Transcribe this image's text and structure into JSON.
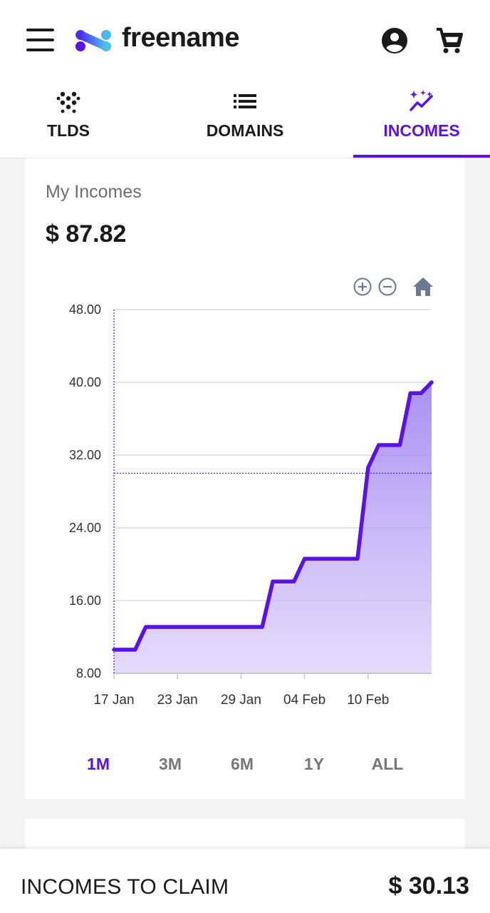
{
  "header": {
    "brand": "freename",
    "menu_icon": "hamburger-menu-icon",
    "account_icon": "account-circle-icon",
    "cart_icon": "shopping-cart-icon"
  },
  "tabs": [
    {
      "label": "TLDS",
      "icon": "dots-grid-icon",
      "active": false
    },
    {
      "label": "DOMAINS",
      "icon": "list-icon",
      "active": false
    },
    {
      "label": "INCOMES",
      "icon": "sparkle-trend-icon",
      "active": true
    }
  ],
  "incomes": {
    "title": "My Incomes",
    "amount": "$ 87.82"
  },
  "chart_toolbar": {
    "zoom_in_icon": "zoom-in-icon",
    "zoom_out_icon": "zoom-out-icon",
    "reset_icon": "home-icon"
  },
  "chart_data": {
    "type": "area",
    "x": [
      "17 Jan",
      "19 Jan",
      "20 Jan",
      "31 Jan",
      "01 Feb",
      "03 Feb",
      "04 Feb",
      "09 Feb",
      "10 Feb",
      "11 Feb",
      "13 Feb",
      "14 Feb",
      "15 Feb",
      "16 Feb"
    ],
    "series": [
      {
        "values": [
          10.6,
          10.6,
          13.1,
          13.1,
          18.1,
          18.1,
          20.6,
          20.6,
          30.6,
          33.1,
          33.1,
          38.8,
          38.8,
          40.0
        ]
      }
    ],
    "x_ticks": [
      "17 Jan",
      "23 Jan",
      "29 Jan",
      "04 Feb",
      "10 Feb"
    ],
    "y_ticks": [
      "8.00",
      "16.00",
      "24.00",
      "32.00",
      "40.00",
      "48.00"
    ],
    "ylim": [
      8,
      48
    ],
    "crosshair": {
      "x": "17 Jan",
      "y": 30.0
    },
    "grid": true,
    "line_color": "#5b12e6",
    "fill_color": "#b9a3f5"
  },
  "ranges": [
    {
      "label": "1M",
      "active": true
    },
    {
      "label": "3M",
      "active": false
    },
    {
      "label": "6M",
      "active": false
    },
    {
      "label": "1Y",
      "active": false
    },
    {
      "label": "ALL",
      "active": false
    }
  ],
  "claim": {
    "label": "INCOMES TO CLAIM",
    "amount": "$ 30.13"
  },
  "colors": {
    "accent": "#5b12e6",
    "text": "#1a1a1a",
    "muted": "#777777"
  }
}
